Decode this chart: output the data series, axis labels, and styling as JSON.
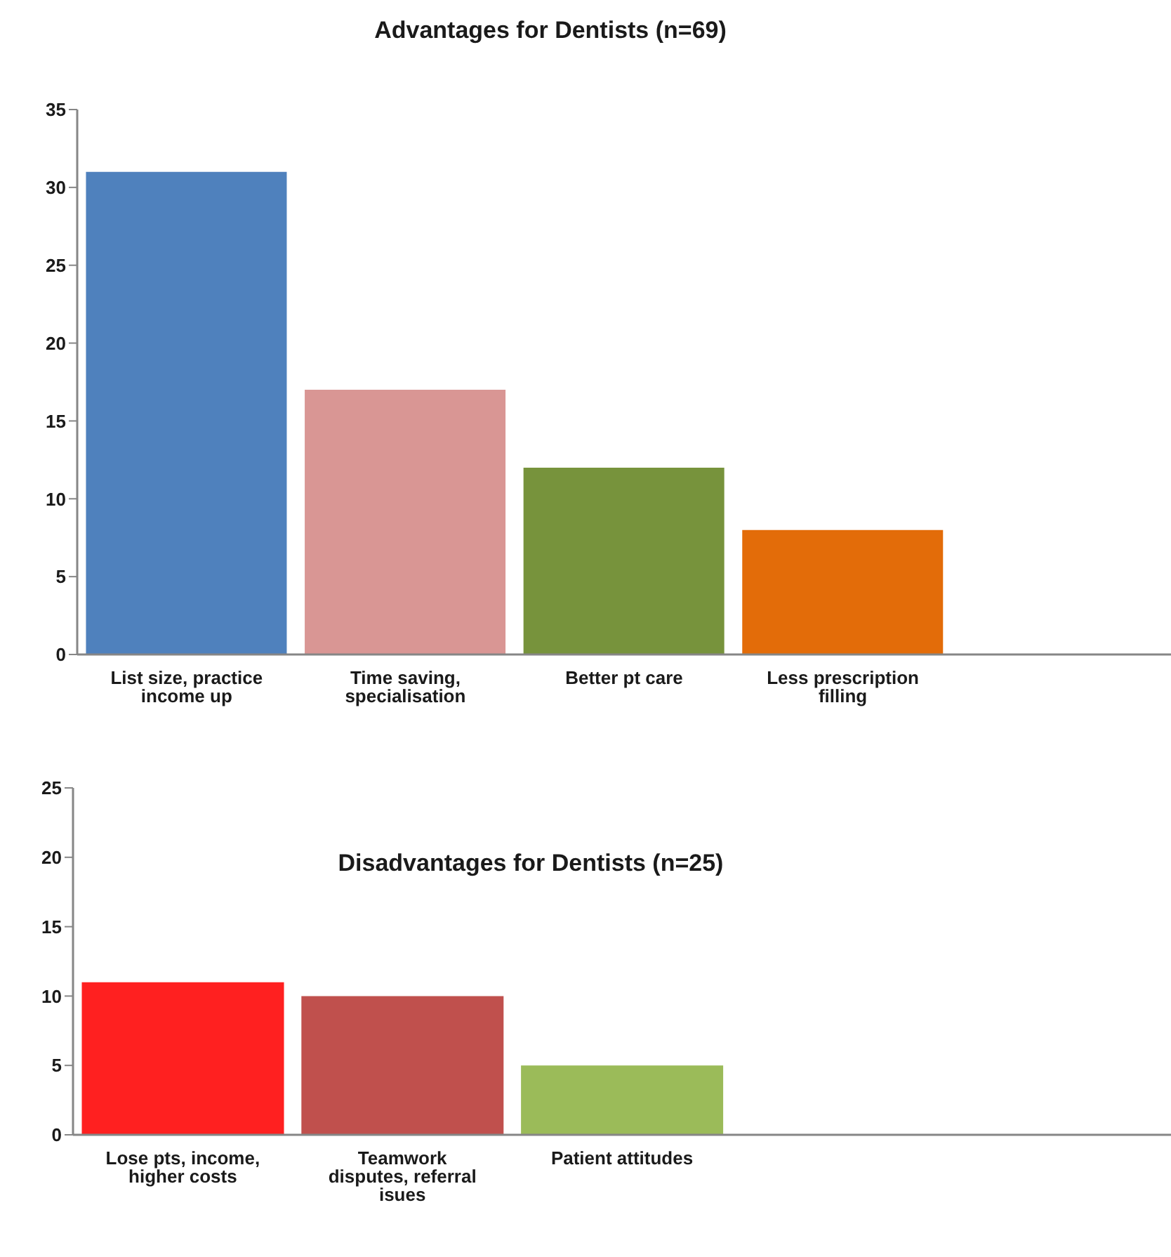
{
  "chart_data": [
    {
      "type": "bar",
      "title": "Advantages for Dentists (n=69)",
      "categories": [
        "List size, practice income up",
        "Time saving, specialisation",
        "Better pt care",
        "Less prescription filling",
        null
      ],
      "values": [
        31,
        17,
        12,
        8,
        null
      ],
      "colors": [
        "#4f81bd",
        "#d99694",
        "#77933c",
        "#e36c09",
        null
      ],
      "ylim": [
        0,
        35
      ],
      "yticks": [
        0,
        5,
        10,
        15,
        20,
        25,
        30,
        35
      ]
    },
    {
      "type": "bar",
      "title": "Disadvantages for Dentists (n=25)",
      "categories": [
        "Lose pts, income, higher costs",
        "Teamwork disputes, referral isues",
        "Patient attitudes",
        null,
        null
      ],
      "values": [
        11,
        10,
        5,
        null,
        null
      ],
      "colors": [
        "#ff2020",
        "#c0504d",
        "#9bbb59",
        null,
        null
      ],
      "ylim": [
        0,
        25
      ],
      "yticks": [
        0,
        5,
        10,
        15,
        20,
        25
      ]
    }
  ]
}
